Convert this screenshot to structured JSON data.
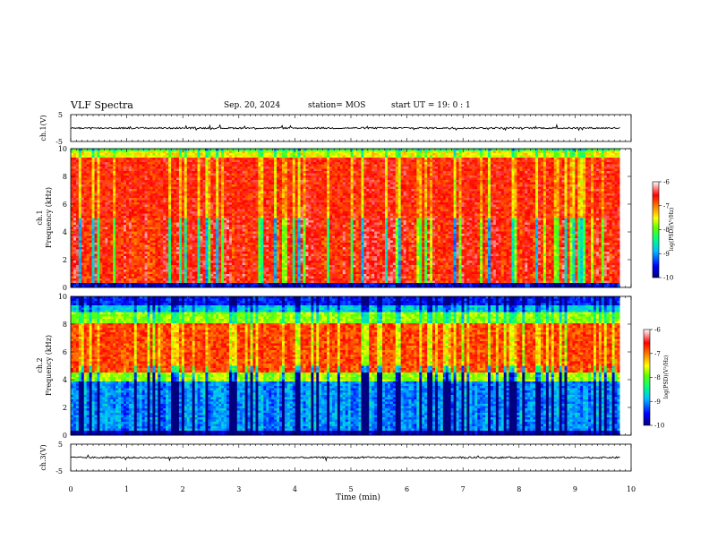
{
  "header": {
    "title": "VLF Spectra",
    "date": "Sep. 20, 2024",
    "station": "station= MOS",
    "start_ut": "start  UT =   19: 0  : 1"
  },
  "chart_data": [
    {
      "type": "line",
      "id": "ch1-waveform",
      "ylabel": "ch.1(V)",
      "ylim": [
        -5,
        5
      ],
      "y_ticks": [
        "5",
        "-5"
      ],
      "x": [
        0,
        9.8
      ],
      "values": [
        0,
        0
      ],
      "note_value": "waveform oscillates tightly around 0 V"
    },
    {
      "type": "heatmap",
      "id": "ch1-spectrogram",
      "ylabel_lines": [
        "ch.1",
        "Frequency (kHz)"
      ],
      "ylim": [
        0,
        10
      ],
      "y_ticks": [
        "0",
        "2",
        "4",
        "6",
        "8",
        "10"
      ],
      "xlim": [
        0,
        10
      ],
      "data_end_min": 9.8,
      "intensity_range": [
        -10,
        -6
      ],
      "dominant_band_khz": [
        0.3,
        9.3
      ],
      "colorbar": {
        "label": "log(PSD)(V²/Hz)",
        "ticks": [
          "-6",
          "-7",
          "-8",
          "-9",
          "-10"
        ]
      }
    },
    {
      "type": "heatmap",
      "id": "ch2-spectrogram",
      "ylabel_lines": [
        "ch.2",
        "Frequency (kHz)"
      ],
      "ylim": [
        0,
        10
      ],
      "y_ticks": [
        "0",
        "2",
        "4",
        "6",
        "8",
        "10"
      ],
      "xlim": [
        0,
        10
      ],
      "data_end_min": 9.8,
      "intensity_range": [
        -10,
        -6
      ],
      "dominant_band_khz": [
        4.5,
        8.0
      ],
      "colorbar": {
        "label": "log(PSD)(V²/Hz)",
        "ticks": [
          "-6",
          "-7",
          "-8",
          "-9",
          "-10"
        ]
      }
    },
    {
      "type": "line",
      "id": "ch3-waveform",
      "ylabel": "ch.3(V)",
      "ylim": [
        -5,
        5
      ],
      "y_ticks": [
        "5",
        "-5"
      ],
      "x": [
        0,
        9.8
      ],
      "values": [
        0,
        0
      ],
      "xlabel": "Time (min)",
      "x_ticks": [
        "0",
        "1",
        "2",
        "3",
        "4",
        "5",
        "6",
        "7",
        "8",
        "9",
        "10"
      ]
    }
  ],
  "colors": {
    "scale": [
      "#000080",
      "#0000ff",
      "#00a0ff",
      "#00ffff",
      "#00ff80",
      "#00ff00",
      "#80ff00",
      "#ffff00",
      "#ffa000",
      "#ff4000",
      "#ff0000",
      "#ffffff"
    ]
  }
}
